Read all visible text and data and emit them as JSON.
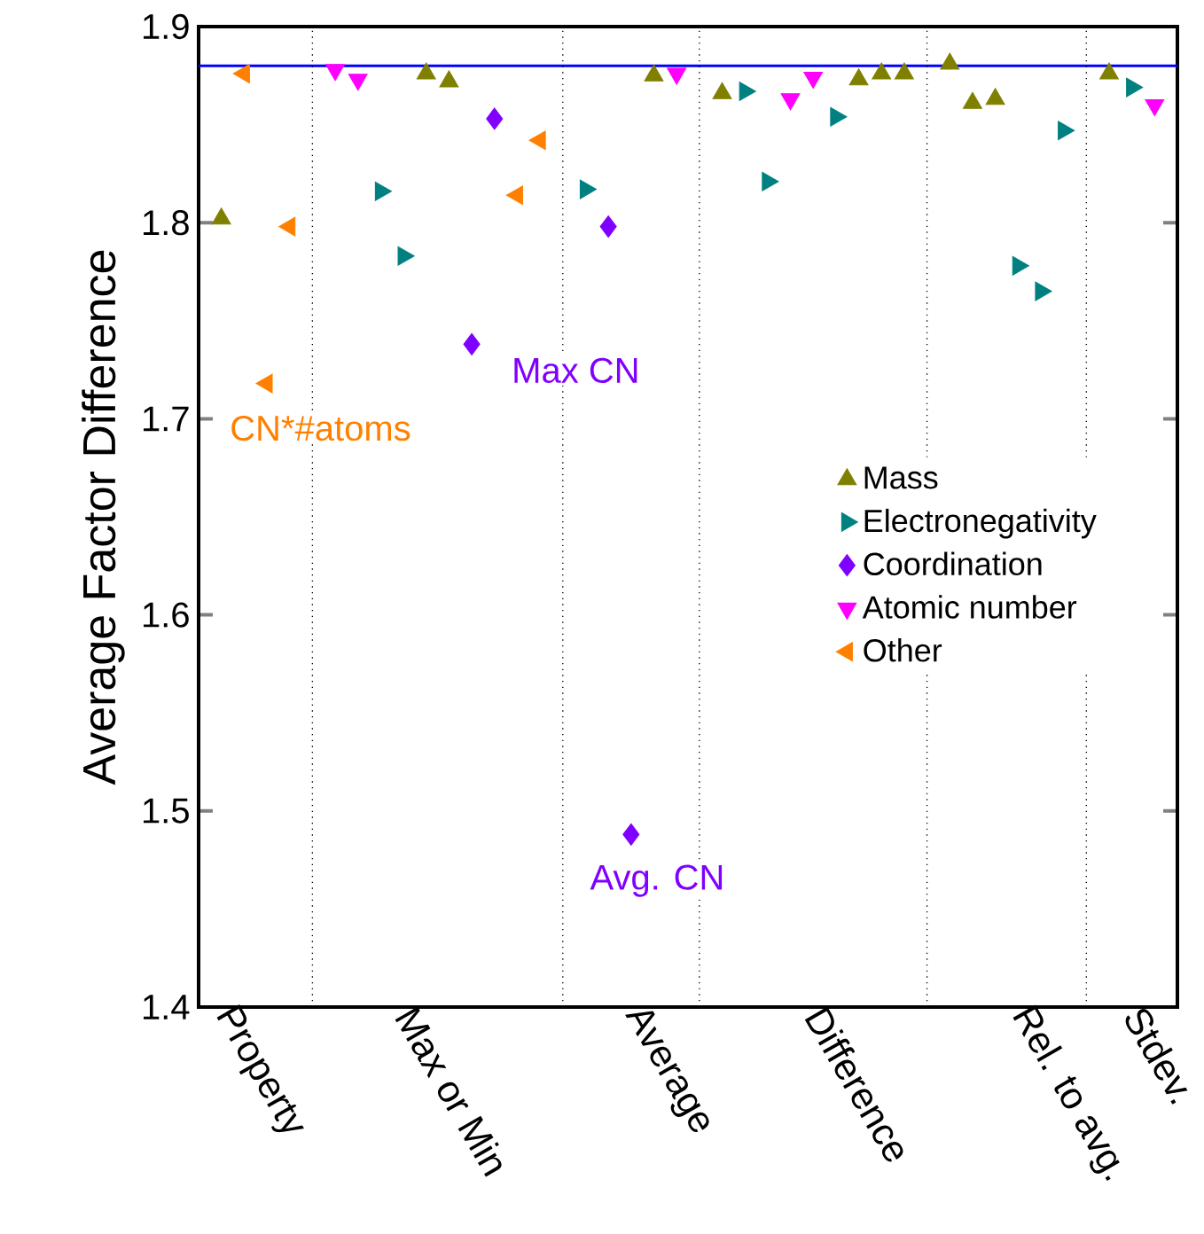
{
  "chart_data": {
    "type": "scatter",
    "ylabel": "Average Factor Difference",
    "categories": [
      null,
      "Property",
      null,
      null,
      null,
      null,
      null,
      null,
      null,
      "Max or Min",
      null,
      null,
      null,
      null,
      null,
      null,
      null,
      null,
      null,
      "Average",
      null,
      null,
      null,
      null,
      null,
      null,
      null,
      "Difference",
      null,
      null,
      null,
      null,
      null,
      null,
      null,
      null,
      "Rel. to avg.",
      null,
      null,
      null,
      null,
      "Stdev.",
      null,
      null
    ],
    "ylim": [
      1.4,
      1.9
    ],
    "yticks": [
      1.4,
      1.5,
      1.6,
      1.7,
      1.8,
      1.9
    ],
    "legend": "right",
    "series": [
      {
        "name": "Mass",
        "color": "#808000",
        "marker": "triangle",
        "values": [
          null,
          1.802,
          null,
          null,
          null,
          null,
          null,
          null,
          null,
          null,
          1.876,
          1.872,
          null,
          null,
          null,
          null,
          null,
          null,
          null,
          null,
          1.875,
          null,
          null,
          1.866,
          null,
          null,
          null,
          null,
          null,
          1.873,
          1.876,
          1.876,
          null,
          1.881,
          1.861,
          1.863,
          null,
          null,
          null,
          null,
          1.876,
          null,
          null,
          null
        ]
      },
      {
        "name": "Electronegativity",
        "color": "#008080",
        "marker": "triangle-right",
        "values": [
          null,
          null,
          null,
          null,
          null,
          null,
          null,
          null,
          1.816,
          1.783,
          null,
          null,
          null,
          null,
          null,
          null,
          null,
          1.817,
          null,
          null,
          null,
          null,
          null,
          null,
          1.867,
          1.821,
          null,
          null,
          1.854,
          null,
          null,
          null,
          null,
          null,
          null,
          null,
          1.778,
          1.765,
          1.847,
          null,
          null,
          1.869,
          null,
          null
        ]
      },
      {
        "name": "Coordination",
        "color": "#8000ff",
        "marker": "diamond",
        "values": [
          null,
          null,
          null,
          null,
          null,
          null,
          null,
          null,
          null,
          null,
          null,
          null,
          1.738,
          1.853,
          null,
          null,
          null,
          null,
          1.798,
          1.488,
          null,
          null,
          null,
          null,
          null,
          null,
          null,
          null,
          null,
          null,
          null,
          null,
          null,
          null,
          null,
          null,
          null,
          null,
          null,
          null,
          null,
          null,
          null,
          null
        ]
      },
      {
        "name": "Atomic number",
        "color": "#ff00ff",
        "marker": "triangle-down",
        "values": [
          null,
          null,
          null,
          null,
          null,
          null,
          1.878,
          1.873,
          null,
          null,
          null,
          null,
          null,
          null,
          null,
          null,
          null,
          null,
          null,
          null,
          null,
          1.876,
          null,
          null,
          null,
          null,
          1.863,
          1.874,
          null,
          null,
          null,
          null,
          null,
          null,
          null,
          null,
          null,
          null,
          null,
          null,
          null,
          null,
          1.86,
          null
        ]
      },
      {
        "name": "Other",
        "color": "#ff8000",
        "marker": "triangle-left",
        "values": [
          null,
          null,
          1.876,
          1.718,
          1.798,
          null,
          null,
          null,
          null,
          null,
          null,
          null,
          null,
          null,
          1.814,
          1.842,
          null,
          null,
          null,
          null,
          null,
          null,
          null,
          null,
          null,
          null,
          null,
          null,
          null,
          null,
          null,
          null,
          null,
          null,
          null,
          null,
          null,
          null,
          null,
          null,
          null,
          null,
          null,
          null
        ]
      }
    ],
    "ref_lines": [
      {
        "axis": "y",
        "value": 1.88,
        "color": "#0000ff",
        "line_style": "solid"
      }
    ],
    "annotations": [
      "CN*#atoms",
      "Max CN",
      "Avg. CN"
    ]
  }
}
